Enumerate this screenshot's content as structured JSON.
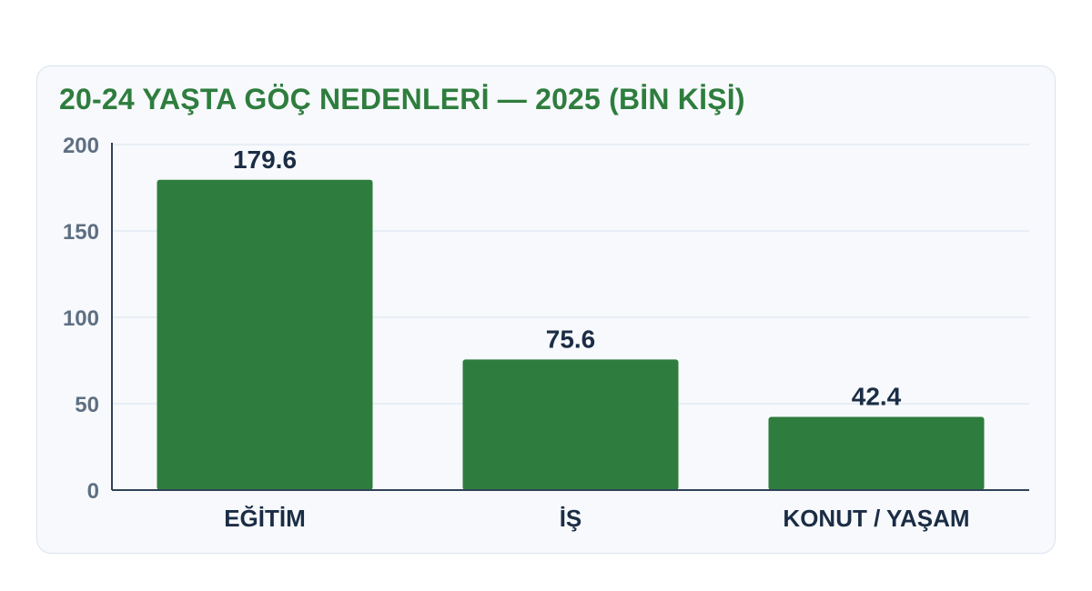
{
  "colors": {
    "bar": "#2e7d3e",
    "title": "#2e7d3e",
    "grid": "#e3ebf3",
    "axis": "#2f4256",
    "card_background": "#f7f9fc",
    "card_border": "#d9e3ef"
  },
  "chart_data": {
    "type": "bar",
    "title": "20-24 YAŞTA GÖÇ NEDENLERİ — 2025 (BİN KİŞİ)",
    "categories": [
      "EĞİTİM",
      "İŞ",
      "KONUT / YAŞAM"
    ],
    "values": [
      179.6,
      75.6,
      42.4
    ],
    "value_labels": [
      "179.6",
      "75.6",
      "42.4"
    ],
    "ylim": [
      0,
      200
    ],
    "yticks": [
      0,
      50,
      100,
      150,
      200
    ],
    "xlabel": "",
    "ylabel": "",
    "grid": true,
    "legend": "none"
  }
}
